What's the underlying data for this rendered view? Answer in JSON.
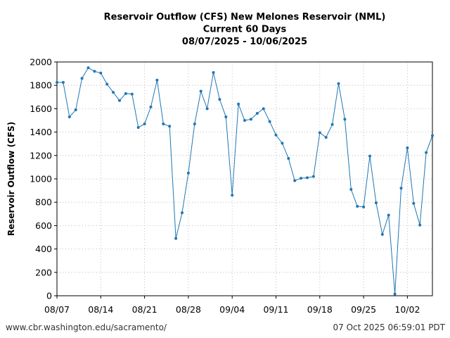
{
  "chart_data": {
    "type": "line",
    "title_lines": [
      "Reservoir Outflow (CFS) New Melones Reservoir (NML)",
      "Current 60 Days",
      "08/07/2025 - 10/06/2025"
    ],
    "xlabel": "",
    "ylabel": "Reservoir Outflow (CFS)",
    "ylim": [
      0,
      2000
    ],
    "yticks": [
      0,
      200,
      400,
      600,
      800,
      1000,
      1200,
      1400,
      1600,
      1800,
      2000
    ],
    "x_start": "2025-08-07",
    "x_end": "2025-10-06",
    "xticks": [
      {
        "date": "2025-08-07",
        "label": "08/07"
      },
      {
        "date": "2025-08-14",
        "label": "08/14"
      },
      {
        "date": "2025-08-21",
        "label": "08/21"
      },
      {
        "date": "2025-08-28",
        "label": "08/28"
      },
      {
        "date": "2025-09-04",
        "label": "09/04"
      },
      {
        "date": "2025-09-11",
        "label": "09/11"
      },
      {
        "date": "2025-09-18",
        "label": "09/18"
      },
      {
        "date": "2025-09-25",
        "label": "09/25"
      },
      {
        "date": "2025-10-02",
        "label": "10/02"
      }
    ],
    "grid": true,
    "line_color": "#1f77b4",
    "series": [
      {
        "dates": [
          "2025-08-07",
          "2025-08-08",
          "2025-08-09",
          "2025-08-10",
          "2025-08-11",
          "2025-08-12",
          "2025-08-13",
          "2025-08-14",
          "2025-08-15",
          "2025-08-16",
          "2025-08-17",
          "2025-08-18",
          "2025-08-19",
          "2025-08-20",
          "2025-08-21",
          "2025-08-22",
          "2025-08-23",
          "2025-08-24",
          "2025-08-25",
          "2025-08-26",
          "2025-08-27",
          "2025-08-28",
          "2025-08-29",
          "2025-08-30",
          "2025-08-31",
          "2025-09-01",
          "2025-09-02",
          "2025-09-03",
          "2025-09-04",
          "2025-09-05",
          "2025-09-06",
          "2025-09-07",
          "2025-09-08",
          "2025-09-09",
          "2025-09-10",
          "2025-09-11",
          "2025-09-12",
          "2025-09-13",
          "2025-09-14",
          "2025-09-15",
          "2025-09-16",
          "2025-09-17",
          "2025-09-18",
          "2025-09-19",
          "2025-09-20",
          "2025-09-21",
          "2025-09-22",
          "2025-09-23",
          "2025-09-24",
          "2025-09-25",
          "2025-09-26",
          "2025-09-27",
          "2025-09-28",
          "2025-09-29",
          "2025-09-30",
          "2025-10-01",
          "2025-10-02",
          "2025-10-03",
          "2025-10-04",
          "2025-10-05",
          "2025-10-06"
        ],
        "values": [
          1825,
          1825,
          1530,
          1590,
          1860,
          1950,
          1920,
          1905,
          1810,
          1740,
          1670,
          1730,
          1725,
          1440,
          1470,
          1615,
          1845,
          1470,
          1450,
          490,
          710,
          1050,
          1470,
          1750,
          1600,
          1910,
          1680,
          1530,
          860,
          1640,
          1500,
          1510,
          1560,
          1600,
          1490,
          1375,
          1305,
          1175,
          985,
          1005,
          1010,
          1020,
          1395,
          1355,
          1465,
          1815,
          1510,
          910,
          765,
          760,
          1195,
          795,
          525,
          690,
          15,
          920,
          1265,
          790,
          605,
          1225,
          1370
        ]
      }
    ]
  },
  "footer": {
    "source_url": "www.cbr.washington.edu/sacramento/",
    "timestamp": "07 Oct 2025 06:59:01 PDT"
  }
}
